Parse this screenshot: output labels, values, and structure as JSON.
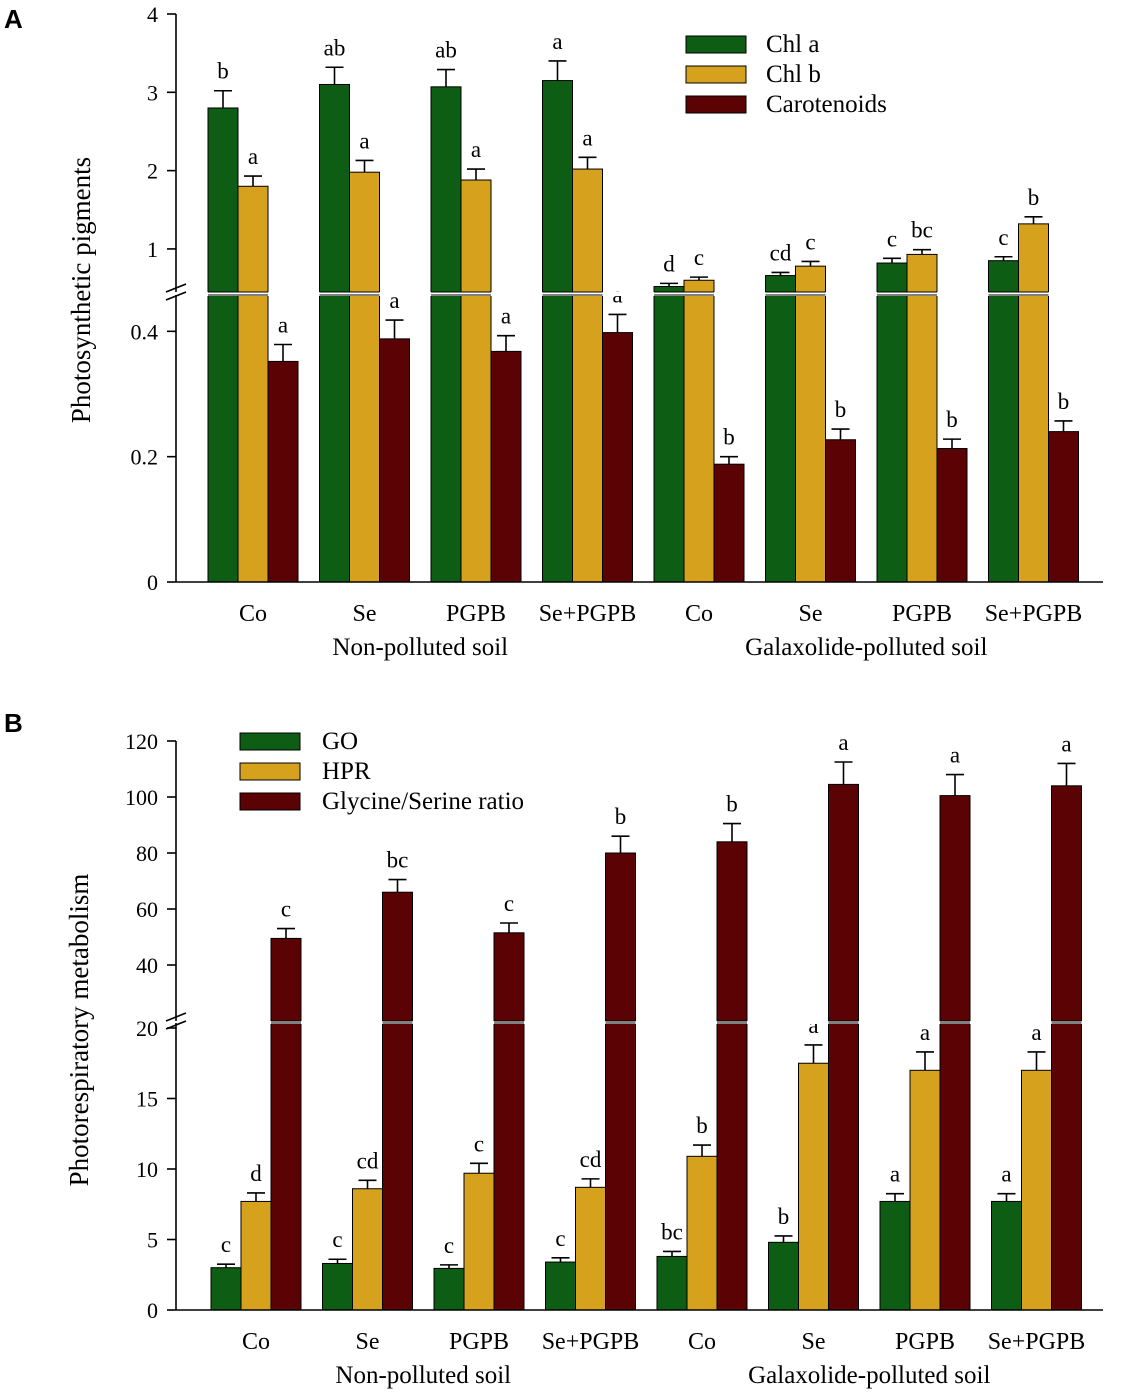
{
  "colors": {
    "series_a": [
      "#0d5e14",
      "#d6a21e",
      "#5a0204"
    ],
    "series_b": [
      "#0d5e14",
      "#d6a21e",
      "#5a0204"
    ],
    "axis": "#000000"
  },
  "chart_data": [
    {
      "panel": "A",
      "type": "bar",
      "ylabel": "Photosynthetic  pigments",
      "categories": [
        "Co",
        "Se",
        "PGPB",
        "Se+PGPB",
        "Co",
        "Se",
        "PGPB",
        "Se+PGPB"
      ],
      "groups": [
        {
          "label": "Non-polluted soil",
          "start": 0,
          "end": 3
        },
        {
          "label": "Galaxolide-polluted soil",
          "start": 4,
          "end": 7
        }
      ],
      "axis_break": true,
      "lower_ylim": [
        0,
        0.45
      ],
      "lower_ticks": [
        0,
        0.2,
        0.4
      ],
      "upper_ylim": [
        0.45,
        4
      ],
      "upper_ticks": [
        1,
        2,
        3,
        4
      ],
      "legend_position": "top-right",
      "series": [
        {
          "name": "Chl a",
          "values": [
            2.8,
            3.1,
            3.07,
            3.15,
            0.52,
            0.66,
            0.82,
            0.85
          ],
          "errors": [
            0.22,
            0.22,
            0.22,
            0.25,
            0.04,
            0.04,
            0.06,
            0.05
          ],
          "letters": [
            "b",
            "ab",
            "ab",
            "a",
            "d",
            "cd",
            "c",
            "c"
          ]
        },
        {
          "name": "Chl b",
          "values": [
            1.8,
            1.98,
            1.88,
            2.02,
            0.6,
            0.78,
            0.93,
            1.32
          ],
          "errors": [
            0.13,
            0.15,
            0.14,
            0.15,
            0.04,
            0.06,
            0.06,
            0.09
          ],
          "letters": [
            "a",
            "a",
            "a",
            "a",
            "c",
            "c",
            "bc",
            "b"
          ]
        },
        {
          "name": "Carotenoids",
          "values": [
            0.352,
            0.388,
            0.368,
            0.398,
            0.188,
            0.227,
            0.213,
            0.24
          ],
          "errors": [
            0.027,
            0.03,
            0.025,
            0.029,
            0.012,
            0.017,
            0.015,
            0.017
          ],
          "letters": [
            "a",
            "a",
            "a",
            "a",
            "b",
            "b",
            "b",
            "b"
          ]
        }
      ]
    },
    {
      "panel": "B",
      "type": "bar",
      "ylabel": "Photorespiratory  metabolism",
      "categories": [
        "Co",
        "Se",
        "PGPB",
        "Se+PGPB",
        "Co",
        "Se",
        "PGPB",
        "Se+PGPB"
      ],
      "groups": [
        {
          "label": "Non-polluted soil",
          "start": 0,
          "end": 3
        },
        {
          "label": "Galaxolide-polluted soil",
          "start": 4,
          "end": 7
        }
      ],
      "axis_break": true,
      "lower_ylim": [
        0,
        20
      ],
      "lower_ticks": [
        0,
        5,
        10,
        15,
        20
      ],
      "upper_ylim": [
        20,
        120
      ],
      "upper_ticks": [
        40,
        60,
        80,
        100,
        120
      ],
      "legend_position": "top-left",
      "series": [
        {
          "name": "GO",
          "values": [
            3.0,
            3.3,
            2.95,
            3.4,
            3.8,
            4.8,
            7.7,
            7.7
          ],
          "errors": [
            0.25,
            0.3,
            0.25,
            0.3,
            0.35,
            0.45,
            0.55,
            0.55
          ],
          "letters": [
            "c",
            "c",
            "c",
            "c",
            "bc",
            "b",
            "a",
            "a"
          ]
        },
        {
          "name": "HPR",
          "values": [
            7.7,
            8.6,
            9.7,
            8.7,
            10.9,
            17.5,
            17.0,
            17.0
          ],
          "errors": [
            0.6,
            0.6,
            0.7,
            0.6,
            0.8,
            1.3,
            1.3,
            1.3
          ],
          "letters": [
            "d",
            "cd",
            "c",
            "cd",
            "b",
            "a",
            "a",
            "a"
          ]
        },
        {
          "name": "Glycine/Serine ratio",
          "values": [
            49.5,
            66,
            51.5,
            80,
            84,
            104.5,
            100.5,
            104
          ],
          "errors": [
            3.5,
            4.5,
            3.5,
            6,
            6.5,
            8,
            7.5,
            8
          ],
          "letters": [
            "c",
            "bc",
            "c",
            "b",
            "b",
            "a",
            "a",
            "a"
          ]
        }
      ]
    }
  ]
}
